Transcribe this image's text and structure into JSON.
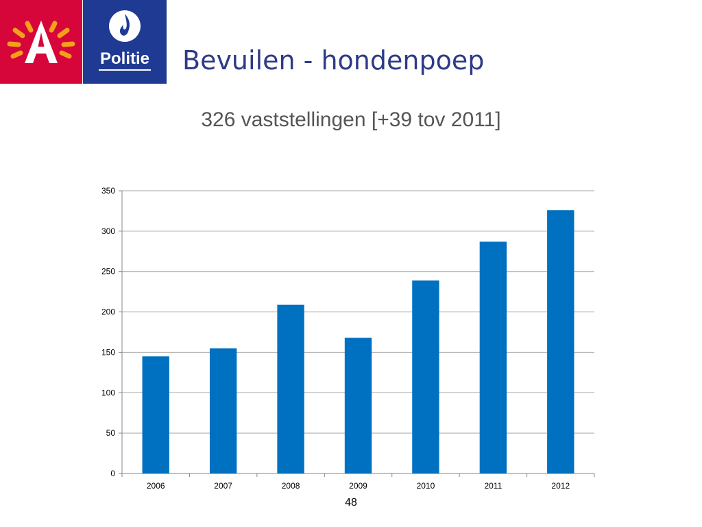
{
  "header": {
    "logo_city_colors": {
      "background": "#d7063a",
      "accent": "#f4a01c"
    },
    "logo_police": {
      "text": "Politie",
      "background": "#1f3a93"
    }
  },
  "slide": {
    "title": "Bevuilen - hondenpoep",
    "subtitle": "326 vaststellingen [+39 tov 2011]",
    "page_number": "48"
  },
  "chart_data": {
    "type": "bar",
    "categories": [
      "2006",
      "2007",
      "2008",
      "2009",
      "2010",
      "2011",
      "2012"
    ],
    "values": [
      145,
      155,
      209,
      168,
      239,
      287,
      326
    ],
    "ylim": [
      0,
      350
    ],
    "yticks": [
      0,
      50,
      100,
      150,
      200,
      250,
      300,
      350
    ],
    "ytick_labels": [
      "0",
      "50",
      "100",
      "150",
      "200",
      "250",
      "300",
      "350"
    ],
    "grid": true,
    "bar_color": "#0070c0",
    "title": "",
    "xlabel": "",
    "ylabel": ""
  }
}
